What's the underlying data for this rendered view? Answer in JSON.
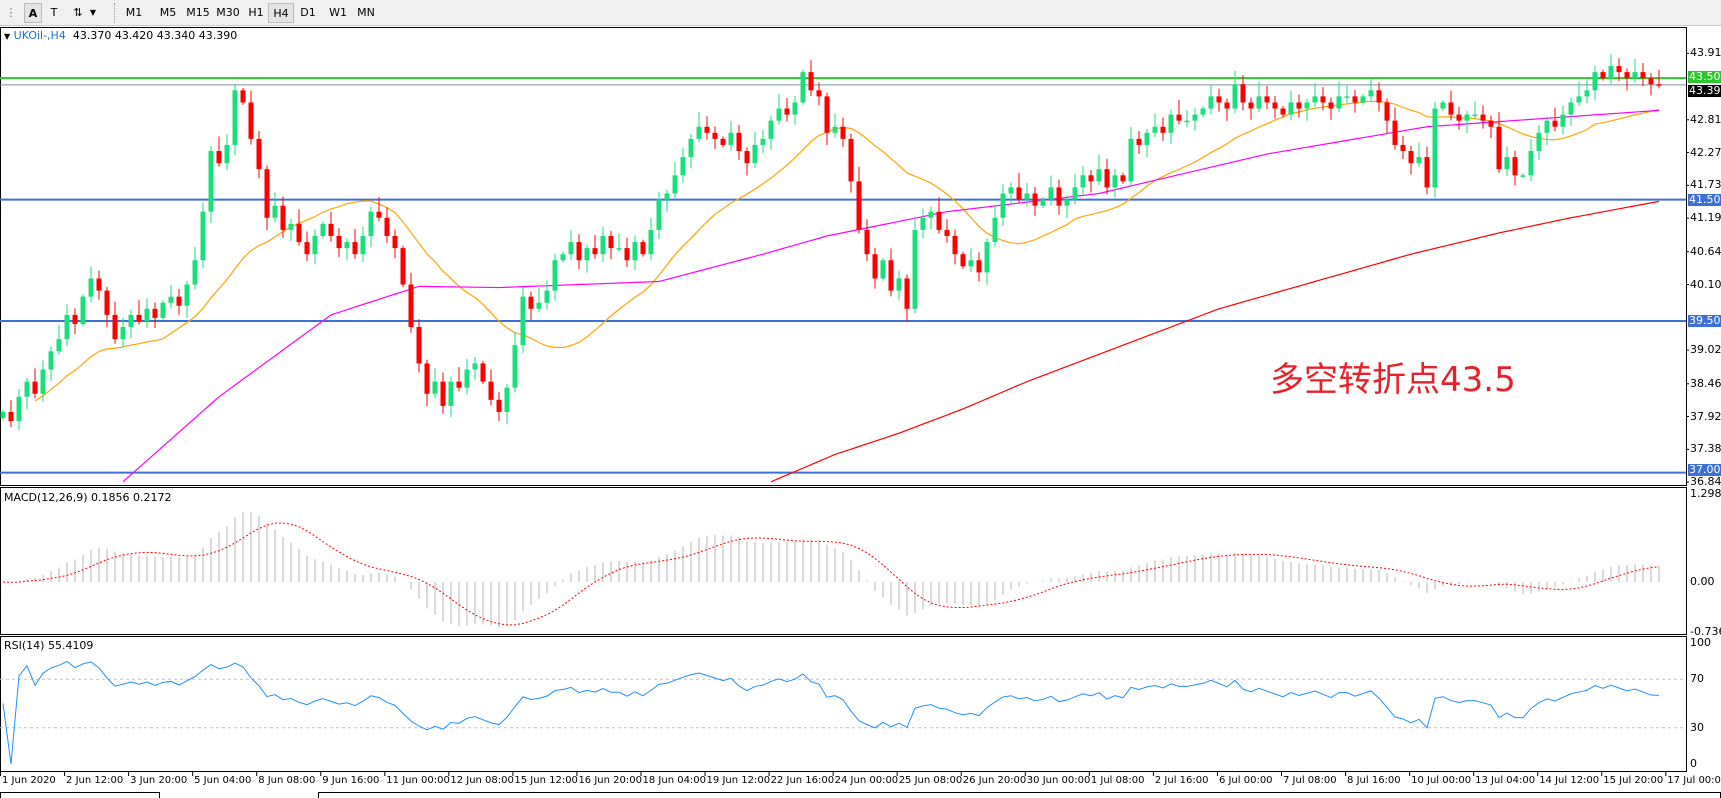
{
  "toolbar": {
    "timeframes": [
      "M1",
      "M5",
      "M15",
      "M30",
      "H1",
      "H4",
      "D1",
      "W1",
      "MN"
    ],
    "active": "H4",
    "icons": [
      "line-style-icon",
      "text-label-A-icon",
      "text-box-icon",
      "arrows-tool-icon",
      "dropdown-arrow-icon"
    ]
  },
  "chart": {
    "symbol_header": "UKOil-,H4",
    "ohlc": "43.370 43.420 43.340 43.390",
    "annotation": "多空转折点43.5",
    "current_price": "43.390",
    "colors": {
      "bull": "#19e07a",
      "bear": "#ff0000",
      "ma_fast": "#ffa500",
      "ma_mid": "#ff00ff",
      "ma_slow": "#ff0000",
      "support": "#3d6fd8",
      "pivot": "#2ec52e"
    },
    "levels": [
      {
        "value": "43.500",
        "color": "#2ec52e"
      },
      {
        "value": "41.500",
        "color": "#3d6fd8"
      },
      {
        "value": "39.500",
        "color": "#3d6fd8"
      },
      {
        "value": "37.000",
        "color": "#3d6fd8"
      }
    ],
    "price_ticks": [
      "43.910",
      "42.815",
      "42.275",
      "41.735",
      "41.195",
      "40.640",
      "40.100",
      "39.020",
      "38.465",
      "37.925",
      "37.385",
      "36.845"
    ],
    "time_ticks": [
      "1 Jun 2020",
      "2 Jun 12:00",
      "3 Jun 20:00",
      "5 Jun 04:00",
      "8 Jun 08:00",
      "9 Jun 16:00",
      "11 Jun 00:00",
      "12 Jun 08:00",
      "15 Jun 12:00",
      "16 Jun 20:00",
      "18 Jun 04:00",
      "19 Jun 12:00",
      "22 Jun 16:00",
      "24 Jun 00:00",
      "25 Jun 08:00",
      "26 Jun 20:00",
      "30 Jun 00:00",
      "1 Jul 08:00",
      "2 Jul 16:00",
      "6 Jul 00:00",
      "7 Jul 08:00",
      "8 Jul 16:00",
      "10 Jul 00:00",
      "13 Jul 04:00",
      "14 Jul 12:00",
      "15 Jul 20:00",
      "17 Jul 00:00"
    ],
    "closes": [
      38.0,
      37.85,
      38.25,
      38.5,
      38.3,
      38.7,
      39.0,
      39.2,
      39.6,
      39.45,
      39.9,
      40.2,
      40.0,
      39.6,
      39.2,
      39.4,
      39.6,
      39.5,
      39.7,
      39.55,
      39.8,
      39.9,
      39.75,
      40.1,
      40.5,
      41.3,
      42.3,
      42.1,
      42.4,
      43.3,
      43.1,
      42.5,
      42.0,
      41.2,
      41.4,
      41.0,
      41.1,
      40.8,
      40.6,
      40.9,
      41.1,
      40.9,
      40.7,
      40.8,
      40.6,
      40.9,
      41.3,
      41.2,
      40.9,
      40.7,
      40.1,
      39.4,
      38.8,
      38.3,
      38.5,
      38.1,
      38.5,
      38.4,
      38.7,
      38.8,
      38.5,
      38.2,
      38.0,
      38.4,
      39.1,
      39.9,
      39.7,
      39.8,
      40.0,
      40.5,
      40.6,
      40.8,
      40.5,
      40.7,
      40.6,
      40.9,
      40.7,
      40.7,
      40.5,
      40.8,
      40.6,
      41.0,
      41.5,
      41.6,
      41.9,
      42.2,
      42.5,
      42.7,
      42.6,
      42.5,
      42.4,
      42.6,
      42.3,
      42.1,
      42.4,
      42.5,
      42.8,
      43.0,
      42.9,
      43.1,
      43.6,
      43.3,
      43.2,
      42.6,
      42.7,
      42.5,
      41.8,
      41.0,
      40.6,
      40.2,
      40.5,
      40.0,
      40.2,
      39.7,
      41.0,
      41.2,
      41.3,
      41.0,
      40.9,
      40.6,
      40.4,
      40.5,
      40.3,
      40.8,
      41.2,
      41.6,
      41.7,
      41.5,
      41.6,
      41.4,
      41.5,
      41.7,
      41.4,
      41.5,
      41.7,
      41.9,
      41.8,
      42.0,
      41.7,
      41.9,
      41.8,
      42.5,
      42.4,
      42.6,
      42.7,
      42.6,
      42.9,
      42.8,
      42.8,
      42.9,
      43.0,
      43.2,
      43.1,
      43.0,
      43.4,
      43.1,
      43.0,
      43.2,
      43.1,
      43.0,
      42.9,
      43.1,
      43.0,
      43.1,
      43.2,
      43.1,
      43.0,
      43.2,
      43.2,
      43.1,
      43.2,
      43.3,
      43.1,
      42.8,
      42.4,
      42.3,
      42.1,
      42.2,
      41.7,
      43.0,
      43.1,
      42.9,
      42.8,
      42.9,
      42.9,
      42.8,
      42.7,
      42.0,
      42.2,
      41.9,
      41.9,
      42.3,
      42.6,
      42.8,
      42.7,
      42.9,
      43.1,
      43.2,
      43.3,
      43.6,
      43.5,
      43.7,
      43.6,
      43.5,
      43.6,
      43.5,
      43.4,
      43.39
    ],
    "ma_mid_points": [
      [
        15,
        36.85
      ],
      [
        27,
        38.25
      ],
      [
        41,
        39.6
      ],
      [
        52,
        40.07
      ],
      [
        62,
        40.05
      ],
      [
        82,
        40.15
      ],
      [
        95,
        40.6
      ],
      [
        103,
        40.9
      ],
      [
        118,
        41.3
      ],
      [
        137,
        41.6
      ],
      [
        158,
        42.25
      ],
      [
        178,
        42.7
      ],
      [
        207,
        42.97
      ]
    ],
    "ma_slow_points": [
      [
        96,
        36.85
      ],
      [
        104,
        37.3
      ],
      [
        112,
        37.65
      ],
      [
        120,
        38.05
      ],
      [
        128,
        38.5
      ],
      [
        136,
        38.9
      ],
      [
        144,
        39.3
      ],
      [
        152,
        39.7
      ],
      [
        160,
        40.0
      ],
      [
        168,
        40.3
      ],
      [
        176,
        40.6
      ],
      [
        187,
        40.95
      ],
      [
        196,
        41.2
      ],
      [
        207,
        41.47
      ]
    ]
  },
  "macd": {
    "label": "MACD(12,26,9) 0.1856 0.2172",
    "ticks": [
      "1.2985",
      "0.00",
      "-0.7362"
    ],
    "range": [
      -0.7362,
      1.2985
    ]
  },
  "rsi": {
    "label": "RSI(14) 55.4109",
    "ticks": [
      "100",
      "70",
      "30",
      "0"
    ],
    "levels": [
      70,
      30
    ],
    "color": "#1e90ff"
  }
}
